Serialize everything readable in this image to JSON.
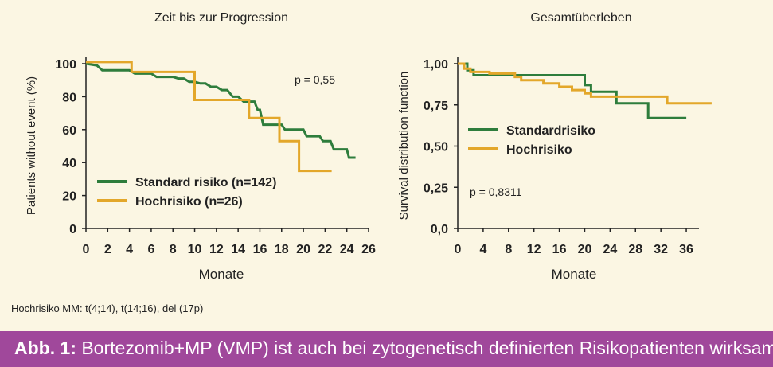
{
  "chart_data": [
    {
      "type": "line",
      "step": true,
      "title": "Zeit bis zur Progression",
      "xlabel": "Monate",
      "ylabel": "Patients without event (%)",
      "xlim": [
        0,
        26
      ],
      "ylim": [
        0,
        100
      ],
      "x_ticks": [
        0,
        2,
        4,
        6,
        8,
        10,
        12,
        14,
        16,
        18,
        20,
        22,
        24,
        26
      ],
      "y_ticks": [
        0,
        20,
        40,
        60,
        80,
        100
      ],
      "x_tick_labels": [
        "0",
        "2",
        "4",
        "6",
        "8",
        "10",
        "12",
        "14",
        "16",
        "18",
        "20",
        "22",
        "24",
        "26"
      ],
      "y_tick_labels": [
        "0",
        "20",
        "40",
        "60",
        "80",
        "100"
      ],
      "annotation": "p = 0,55",
      "legend_position": "bottom-left",
      "series": [
        {
          "name": "Standard risiko (n=142)",
          "color": "#2e7d3c",
          "points": [
            [
              0,
              100
            ],
            [
              1,
              99
            ],
            [
              1.5,
              96
            ],
            [
              4,
              96
            ],
            [
              4.5,
              94
            ],
            [
              6,
              94
            ],
            [
              6.5,
              92
            ],
            [
              8,
              92
            ],
            [
              8.5,
              91
            ],
            [
              9,
              91
            ],
            [
              9.5,
              89
            ],
            [
              10,
              89
            ],
            [
              10.5,
              88
            ],
            [
              11,
              88
            ],
            [
              11.5,
              86
            ],
            [
              12,
              86
            ],
            [
              12.5,
              84
            ],
            [
              13,
              84
            ],
            [
              13.5,
              80
            ],
            [
              14,
              80
            ],
            [
              14.5,
              77
            ],
            [
              15.5,
              77
            ],
            [
              15.8,
              72
            ],
            [
              16,
              72
            ],
            [
              16.3,
              63
            ],
            [
              18,
              63
            ],
            [
              18.3,
              60
            ],
            [
              20,
              60
            ],
            [
              20.3,
              56
            ],
            [
              21.5,
              56
            ],
            [
              21.8,
              53
            ],
            [
              22.5,
              53
            ],
            [
              22.8,
              48
            ],
            [
              24,
              48
            ],
            [
              24.2,
              43
            ],
            [
              24.8,
              43
            ]
          ]
        },
        {
          "name": "Hochrisiko (n=26)",
          "color": "#e3a72a",
          "points": [
            [
              0,
              101
            ],
            [
              4.2,
              101
            ],
            [
              4.2,
              95
            ],
            [
              10,
              95
            ],
            [
              10,
              78
            ],
            [
              15,
              78
            ],
            [
              15,
              67
            ],
            [
              17.8,
              67
            ],
            [
              17.8,
              53
            ],
            [
              19.6,
              53
            ],
            [
              19.6,
              35
            ],
            [
              22.6,
              35
            ]
          ]
        }
      ]
    },
    {
      "type": "line",
      "step": true,
      "title": "Gesamtüberleben",
      "xlabel": "Monate",
      "ylabel": "Survival distribution function",
      "xlim": [
        0,
        38
      ],
      "ylim": [
        0,
        1
      ],
      "x_ticks": [
        0,
        4,
        8,
        12,
        16,
        20,
        24,
        28,
        32,
        36
      ],
      "y_ticks": [
        0,
        0.25,
        0.5,
        0.75,
        1
      ],
      "x_tick_labels": [
        "0",
        "4",
        "8",
        "12",
        "16",
        "20",
        "24",
        "28",
        "32",
        "36"
      ],
      "y_tick_labels": [
        "0,0",
        "0,25",
        "0,50",
        "0,75",
        "1,00"
      ],
      "annotation": "p = 0,8311",
      "legend_position": "center-left",
      "series": [
        {
          "name": "Standardrisiko",
          "color": "#2e7d3c",
          "points": [
            [
              0,
              1
            ],
            [
              1.5,
              1
            ],
            [
              1.5,
              0.96
            ],
            [
              2.5,
              0.96
            ],
            [
              2.5,
              0.93
            ],
            [
              20,
              0.93
            ],
            [
              20,
              0.87
            ],
            [
              21,
              0.87
            ],
            [
              21,
              0.83
            ],
            [
              25,
              0.83
            ],
            [
              25,
              0.76
            ],
            [
              30,
              0.76
            ],
            [
              30,
              0.67
            ],
            [
              36,
              0.67
            ]
          ]
        },
        {
          "name": "Hochrisiko",
          "color": "#e3a72a",
          "points": [
            [
              0,
              1
            ],
            [
              1,
              1
            ],
            [
              1,
              0.97
            ],
            [
              2,
              0.97
            ],
            [
              2,
              0.95
            ],
            [
              5,
              0.95
            ],
            [
              5,
              0.94
            ],
            [
              9,
              0.94
            ],
            [
              9,
              0.92
            ],
            [
              10,
              0.92
            ],
            [
              10,
              0.9
            ],
            [
              13.5,
              0.9
            ],
            [
              13.5,
              0.88
            ],
            [
              16,
              0.88
            ],
            [
              16,
              0.86
            ],
            [
              18,
              0.86
            ],
            [
              18,
              0.84
            ],
            [
              20,
              0.84
            ],
            [
              20,
              0.82
            ],
            [
              21,
              0.82
            ],
            [
              21,
              0.8
            ],
            [
              33,
              0.8
            ],
            [
              33,
              0.76
            ],
            [
              40,
              0.76
            ]
          ]
        }
      ]
    }
  ],
  "footnote": "Hochrisiko MM: t(4;14), t(14;16), del (17p)",
  "caption": {
    "label": "Abb. 1:",
    "text": " Bortezomib+MP (VMP) ist auch bei zytogenetisch definierten Risikopatienten wirksam"
  }
}
